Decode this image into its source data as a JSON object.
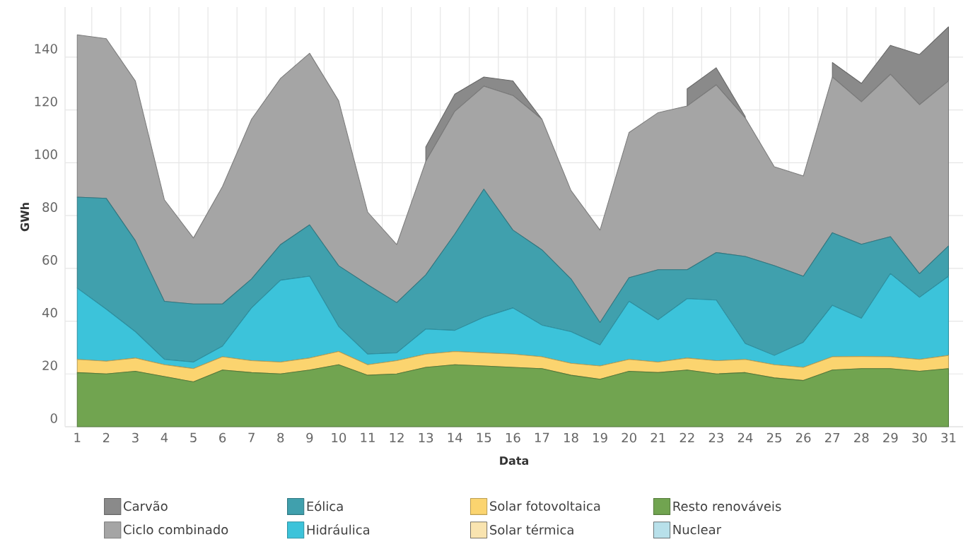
{
  "chart_data": {
    "type": "area",
    "stacked": true,
    "xlabel": "Data",
    "ylabel": "GWh",
    "categories": [
      "1",
      "2",
      "3",
      "4",
      "5",
      "6",
      "7",
      "8",
      "9",
      "10",
      "11",
      "12",
      "13",
      "14",
      "15",
      "16",
      "17",
      "18",
      "19",
      "20",
      "21",
      "22",
      "23",
      "24",
      "25",
      "26",
      "27",
      "28",
      "29",
      "30",
      "31"
    ],
    "ylim": [
      0,
      159
    ],
    "yticks": [
      0,
      20,
      40,
      60,
      80,
      100,
      120,
      140
    ],
    "grid": true,
    "legend": "bottom",
    "series": [
      {
        "name": "Nuclear",
        "color": "#b8e0ea",
        "values": [
          null,
          null,
          null,
          null,
          null,
          null,
          null,
          null,
          null,
          null,
          null,
          null,
          null,
          null,
          null,
          null,
          null,
          null,
          null,
          null,
          null,
          null,
          null,
          null,
          null,
          null,
          null,
          null,
          null,
          null,
          null
        ]
      },
      {
        "name": "Resto renováveis",
        "color": "#71a450",
        "values": [
          20.5,
          20,
          21,
          19,
          17,
          21.5,
          20.5,
          20,
          21.5,
          23.5,
          19.5,
          20,
          22.5,
          23.5,
          23,
          22.5,
          22,
          19.5,
          18,
          21,
          20.5,
          21.5,
          20,
          20.5,
          18.5,
          17.5,
          21.5,
          22,
          22,
          21,
          22
        ]
      },
      {
        "name": "Solar térmica",
        "color": "#f9e4b0",
        "values": [
          null,
          null,
          null,
          null,
          null,
          null,
          null,
          null,
          null,
          null,
          null,
          null,
          null,
          null,
          null,
          null,
          null,
          null,
          null,
          null,
          null,
          null,
          null,
          null,
          null,
          null,
          null,
          null,
          null,
          null,
          null
        ]
      },
      {
        "name": "Solar fotovoltaica",
        "color": "#fbd46f",
        "values": [
          5,
          4.8,
          5,
          4.5,
          5,
          5,
          4.5,
          4.5,
          4.5,
          5,
          4,
          5,
          5,
          5,
          5,
          5,
          4.5,
          4.5,
          5,
          4.5,
          4,
          4.5,
          5,
          5,
          5,
          5,
          5,
          4.6,
          4.5,
          4.5,
          5
        ]
      },
      {
        "name": "Hidráulica",
        "color": "#3cc3da",
        "values": [
          27,
          19.7,
          10,
          2,
          2.5,
          4,
          20,
          31,
          31,
          9.5,
          4,
          3,
          9.5,
          8,
          13.5,
          17.5,
          12,
          12,
          8,
          22,
          16,
          22.5,
          23,
          6,
          3.5,
          9.5,
          19.5,
          14.5,
          31.5,
          23.5,
          30
        ]
      },
      {
        "name": "Eólica",
        "color": "#40a0ad",
        "values": [
          34.5,
          42,
          34.5,
          22,
          22,
          16,
          11,
          13.5,
          19.5,
          23,
          26.3,
          19,
          20.5,
          36.5,
          48.5,
          29.5,
          28.5,
          20,
          8.5,
          9,
          19,
          11,
          18,
          33,
          34,
          25,
          27.5,
          28,
          14,
          9,
          11.5
        ]
      },
      {
        "name": "Ciclo combinado",
        "color": "#a5a5a5",
        "values": [
          61.5,
          60.5,
          60.5,
          38.5,
          25,
          44.5,
          60.5,
          63,
          65,
          62.5,
          27.5,
          22,
          43,
          46.5,
          39,
          51,
          49.5,
          33.5,
          35,
          55,
          59.5,
          62,
          63.5,
          52.5,
          37.5,
          38,
          59,
          54,
          61.5,
          64,
          62.5
        ]
      },
      {
        "name": "Carvão",
        "color": "#8a8a8a",
        "values": [
          null,
          null,
          null,
          null,
          null,
          null,
          null,
          null,
          null,
          null,
          null,
          null,
          5.5,
          6.5,
          3.5,
          5.5,
          0,
          null,
          null,
          null,
          null,
          6.5,
          6.5,
          0.5,
          null,
          null,
          5.5,
          7,
          11,
          19,
          20.5
        ]
      }
    ]
  }
}
